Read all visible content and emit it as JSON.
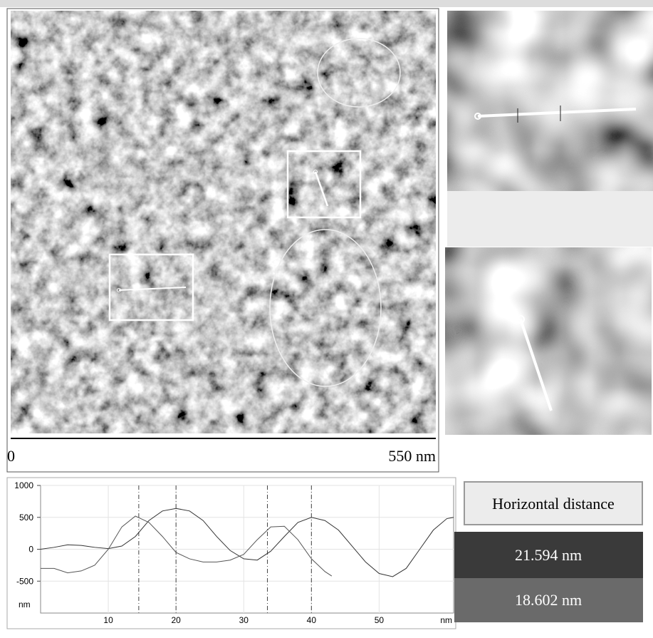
{
  "scale_bar": {
    "start_label": "0",
    "end_label": "550 nm"
  },
  "button": {
    "label": "Horizontal distance"
  },
  "measurements": [
    "21.594 nm",
    "18.602 nm"
  ],
  "chart_data": {
    "type": "line",
    "x_label": "nm",
    "y_label": "nm",
    "xlim": [
      0,
      61
    ],
    "xticks": [
      10,
      20,
      30,
      40,
      50
    ],
    "ylim": [
      -1000,
      1000
    ],
    "yticks": [
      1000,
      500,
      0,
      -500
    ],
    "cursors": [
      14.5,
      20,
      33.5,
      40
    ],
    "series": [
      {
        "color": "#333333",
        "x": [
          0,
          2,
          4,
          6,
          8,
          10,
          12,
          14,
          16,
          18,
          20,
          22,
          24,
          26,
          28,
          30,
          32,
          34,
          36,
          38,
          40,
          42,
          44,
          46,
          48,
          50,
          52,
          54,
          56,
          58,
          60,
          61
        ],
        "values": [
          0,
          30,
          70,
          60,
          30,
          10,
          50,
          200,
          450,
          600,
          640,
          600,
          450,
          200,
          -20,
          -150,
          -170,
          -30,
          200,
          420,
          500,
          450,
          300,
          50,
          -200,
          -380,
          -430,
          -300,
          0,
          300,
          480,
          500
        ]
      },
      {
        "color": "#555555",
        "x": [
          0,
          2,
          4,
          6,
          8,
          10,
          12,
          14,
          16,
          18,
          20,
          22,
          24,
          26,
          28,
          30,
          32,
          34,
          36,
          38,
          40,
          42,
          43
        ],
        "values": [
          -300,
          -300,
          -370,
          -340,
          -250,
          0,
          350,
          520,
          420,
          200,
          -50,
          -150,
          -200,
          -200,
          -170,
          -80,
          150,
          350,
          360,
          150,
          -150,
          -350,
          -420
        ]
      }
    ]
  }
}
